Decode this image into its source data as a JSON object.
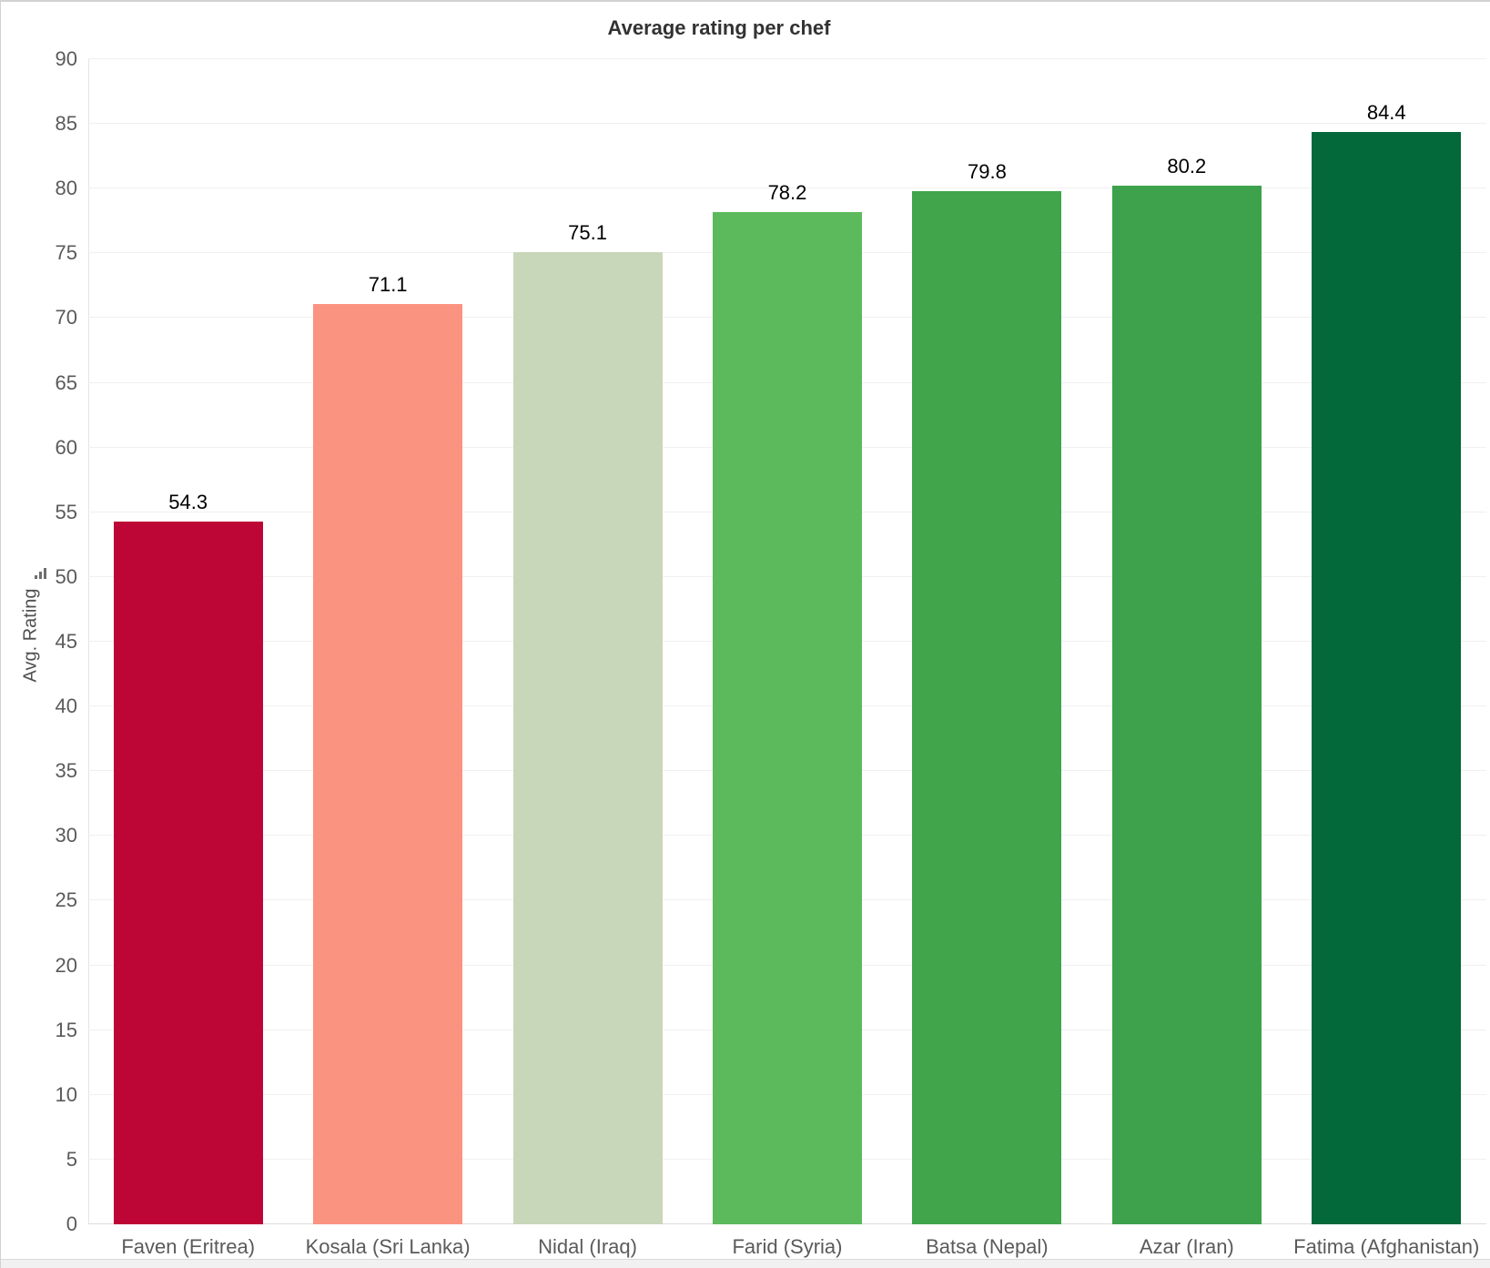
{
  "chart_data": {
    "type": "bar",
    "title": "Average rating per chef",
    "ylabel": "Avg. Rating",
    "categories": [
      "Faven (Eritrea)",
      "Kosala (Sri Lanka)",
      "Nidal (Iraq)",
      "Farid (Syria)",
      "Batsa (Nepal)",
      "Azar (Iran)",
      "Fatima (Afghanistan)"
    ],
    "values": [
      54.3,
      71.1,
      75.1,
      78.2,
      79.8,
      80.2,
      84.4
    ],
    "value_labels": [
      "54.3",
      "71.1",
      "75.1",
      "78.2",
      "79.8",
      "80.2",
      "84.4"
    ],
    "bar_colors": [
      "#bd0636",
      "#fb9381",
      "#c8d7b9",
      "#5cba5c",
      "#40a54b",
      "#3da24b",
      "#04693a"
    ],
    "ylim": [
      0,
      90
    ],
    "ytick_step": 5,
    "grid": true,
    "legend_position": "none",
    "sort_icon": "ascending-bars-icon"
  },
  "colors": {
    "background": "#ffffff",
    "gridline": "#f0f0f0",
    "axis_line": "#dcdcdc",
    "y_rule": "#e4e4e4",
    "tick_text": "#5a5a5a",
    "value_text": "#000000",
    "title_text": "#323232",
    "window_border": "#d2d2d2",
    "bottom_strip": "#f1f1f1",
    "sort_icon": "#6e6e6e"
  }
}
